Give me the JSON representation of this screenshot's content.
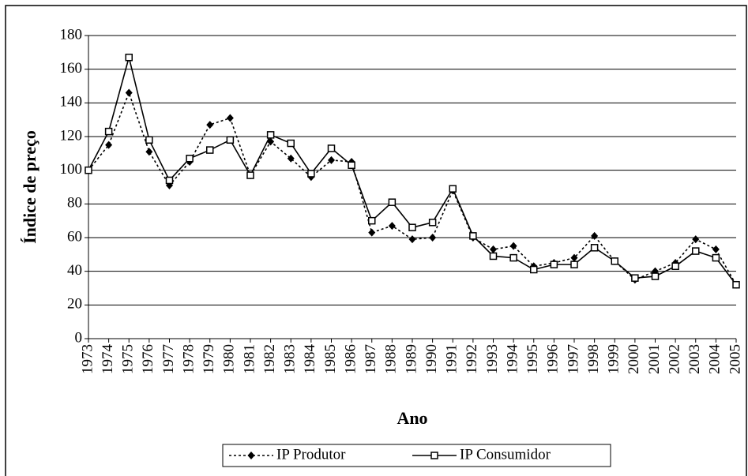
{
  "chart_data": {
    "type": "line",
    "x_label": "Ano",
    "y_label": "Índice de preço",
    "categories": [
      "1973",
      "1974",
      "1975",
      "1976",
      "1977",
      "1978",
      "1979",
      "1980",
      "1981",
      "1982",
      "1983",
      "1984",
      "1985",
      "1986",
      "1987",
      "1988",
      "1989",
      "1990",
      "1991",
      "1992",
      "1993",
      "1994",
      "1995",
      "1996",
      "1997",
      "1998",
      "1999",
      "2000",
      "2001",
      "2002",
      "2003",
      "2004",
      "2005"
    ],
    "series": [
      {
        "name": "IP Produtor",
        "color": "#000000",
        "dash": "dotted",
        "marker": "diamond",
        "values": [
          100,
          115,
          146,
          111,
          91,
          105,
          127,
          131,
          97,
          117,
          107,
          96,
          106,
          105,
          63,
          67,
          59,
          60,
          88,
          60,
          53,
          55,
          43,
          45,
          48,
          61,
          46,
          35,
          40,
          45,
          59,
          53,
          32
        ]
      },
      {
        "name": "IP Consumidor",
        "color": "#000000",
        "dash": "solid",
        "marker": "square",
        "values": [
          100,
          123,
          167,
          118,
          94,
          107,
          112,
          118,
          97,
          121,
          116,
          98,
          113,
          103,
          70,
          81,
          66,
          69,
          89,
          61,
          49,
          48,
          41,
          44,
          44,
          54,
          46,
          36,
          37,
          43,
          52,
          48,
          32
        ]
      }
    ],
    "ylim": [
      0,
      180
    ],
    "yticks": [
      0,
      20,
      40,
      60,
      80,
      100,
      120,
      140,
      160,
      180
    ],
    "grid": true,
    "legend": "bottom"
  }
}
